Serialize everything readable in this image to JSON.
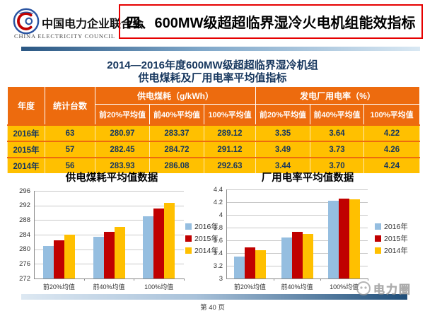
{
  "header": {
    "org_name_cn": "中国电力企业联合会",
    "org_name_en": "CHINA ELECTRICITY COUNCIL",
    "slide_title": "四、600MW级超超临界湿冷火电机组能效指标"
  },
  "table": {
    "title_line1": "2014—2016年度600MW级超超临界湿冷机组",
    "title_line2": "供电煤耗及厂用电率平均值指标",
    "col_year": "年度",
    "col_units": "统计台数",
    "group1": "供电煤耗（g/kWh）",
    "group2": "发电厂用电率（%）",
    "subheaders": [
      "前20%平均值",
      "前40%平均值",
      "100%平均值",
      "前20%平均值",
      "前40%平均值",
      "100%平均值"
    ],
    "rows": [
      {
        "year": "2016年",
        "units": "63",
        "values": [
          "280.97",
          "283.37",
          "289.12",
          "3.35",
          "3.64",
          "4.22"
        ]
      },
      {
        "year": "2015年",
        "units": "57",
        "values": [
          "282.45",
          "284.72",
          "291.12",
          "3.49",
          "3.73",
          "4.26"
        ]
      },
      {
        "year": "2014年",
        "units": "56",
        "values": [
          "283.93",
          "286.08",
          "292.63",
          "3.44",
          "3.70",
          "4.24"
        ]
      }
    ]
  },
  "chart_data": [
    {
      "type": "bar",
      "title": "供电煤耗平均值数据",
      "categories": [
        "前20%均值",
        "前40%均值",
        "100%均值"
      ],
      "series": [
        {
          "name": "2016年",
          "color": "#95bee0",
          "values": [
            280.97,
            283.37,
            289.12
          ]
        },
        {
          "name": "2015年",
          "color": "#c00000",
          "values": [
            282.45,
            284.72,
            291.12
          ]
        },
        {
          "name": "2014年",
          "color": "#ffc000",
          "values": [
            283.93,
            286.08,
            292.63
          ]
        }
      ],
      "xlabel": "",
      "ylabel": "",
      "ylim": [
        272,
        296
      ],
      "ytick_step": 4,
      "grid": true,
      "legend_position": "right"
    },
    {
      "type": "bar",
      "title": "厂用电率平均值数据",
      "categories": [
        "前20%均值",
        "前40%均值",
        "100%均值"
      ],
      "series": [
        {
          "name": "2016年",
          "color": "#95bee0",
          "values": [
            3.35,
            3.64,
            4.22
          ]
        },
        {
          "name": "2015年",
          "color": "#c00000",
          "values": [
            3.49,
            3.73,
            4.26
          ]
        },
        {
          "name": "2014年",
          "color": "#ffc000",
          "values": [
            3.44,
            3.7,
            4.24
          ]
        }
      ],
      "xlabel": "",
      "ylabel": "",
      "ylim": [
        3,
        4.4
      ],
      "ytick_step": 0.2,
      "grid": true,
      "legend_position": "right"
    }
  ],
  "footer": {
    "page_label": "第 40 页",
    "watermark_text": "电力圈"
  },
  "colors": {
    "table_header_orange": "#ed6b0e",
    "table_row_yellow": "#ffc000",
    "navy_text": "#17375e",
    "title_border_red": "#e60000",
    "header_bar_gradient": [
      "#2a5783",
      "#d9e8f3"
    ],
    "footer_bar_gradient": [
      "#dde8f2",
      "#1f4e79"
    ]
  }
}
